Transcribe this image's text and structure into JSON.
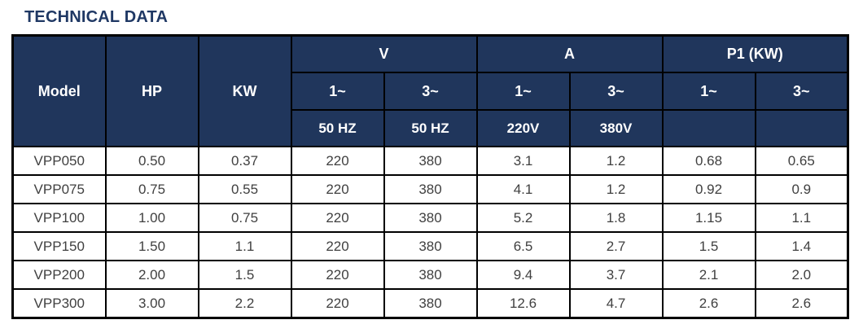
{
  "page_title": "TECHNICAL DATA",
  "colors": {
    "header_bg": "#20365C",
    "header_text": "#FFFFFF",
    "title_text": "#1F3864",
    "body_text": "#404040",
    "border": "#000000"
  },
  "table": {
    "header": {
      "model": "Model",
      "hp": "HP",
      "kw": "KW",
      "v_group": "V",
      "a_group": "A",
      "p1_group": "P1 (KW)",
      "phase": {
        "v1": "1~",
        "v3": "3~",
        "a1": "1~",
        "a3": "3~",
        "p1": "1~",
        "p3": "3~"
      },
      "detail": {
        "v1": "50 HZ",
        "v3": "50 HZ",
        "a1": "220V",
        "a3": "380V",
        "p1": "",
        "p3": ""
      }
    },
    "rows": [
      [
        "VPP050",
        "0.50",
        "0.37",
        "220",
        "380",
        "3.1",
        "1.2",
        "0.68",
        "0.65"
      ],
      [
        "VPP075",
        "0.75",
        "0.55",
        "220",
        "380",
        "4.1",
        "1.2",
        "0.92",
        "0.9"
      ],
      [
        "VPP100",
        "1.00",
        "0.75",
        "220",
        "380",
        "5.2",
        "1.8",
        "1.15",
        "1.1"
      ],
      [
        "VPP150",
        "1.50",
        "1.1",
        "220",
        "380",
        "6.5",
        "2.7",
        "1.5",
        "1.4"
      ],
      [
        "VPP200",
        "2.00",
        "1.5",
        "220",
        "380",
        "9.4",
        "3.7",
        "2.1",
        "2.0"
      ],
      [
        "VPP300",
        "3.00",
        "2.2",
        "220",
        "380",
        "12.6",
        "4.7",
        "2.6",
        "2.6"
      ]
    ]
  }
}
